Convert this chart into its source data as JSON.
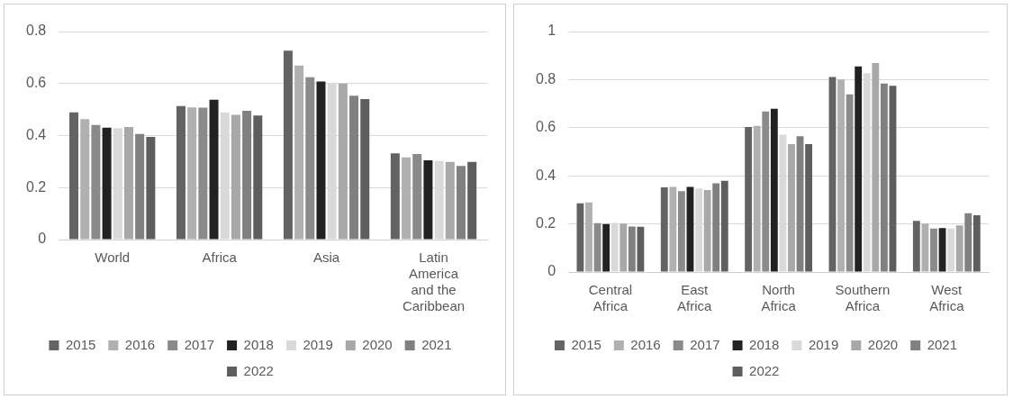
{
  "chart_data": [
    {
      "type": "bar",
      "categories": [
        "World",
        "Africa",
        "Asia",
        "Latin America and the Caribbean"
      ],
      "ylim": [
        0,
        0.8
      ],
      "yticks": [
        0,
        0.2,
        0.4,
        0.6,
        0.8
      ],
      "grid": "y",
      "legend": "bottom",
      "series": [
        {
          "name": "2015",
          "color": "#636363",
          "values": [
            0.489,
            0.513,
            0.726,
            0.332
          ]
        },
        {
          "name": "2016",
          "color": "#b0b0b0",
          "values": [
            0.463,
            0.508,
            0.669,
            0.316
          ]
        },
        {
          "name": "2017",
          "color": "#8a8a8a",
          "values": [
            0.441,
            0.507,
            0.624,
            0.329
          ]
        },
        {
          "name": "2018",
          "color": "#222222",
          "values": [
            0.43,
            0.538,
            0.608,
            0.305
          ]
        },
        {
          "name": "2019",
          "color": "#d9d9d9",
          "values": [
            0.429,
            0.489,
            0.603,
            0.302
          ]
        },
        {
          "name": "2020",
          "color": "#a8a8a8",
          "values": [
            0.433,
            0.48,
            0.6,
            0.299
          ]
        },
        {
          "name": "2021",
          "color": "#808080",
          "values": [
            0.406,
            0.495,
            0.553,
            0.283
          ]
        },
        {
          "name": "2022",
          "color": "#5e5e5e",
          "values": [
            0.395,
            0.477,
            0.54,
            0.299
          ]
        }
      ]
    },
    {
      "type": "bar",
      "categories": [
        "Central Africa",
        "East Africa",
        "North Africa",
        "Southern Africa",
        "West Africa"
      ],
      "ylim": [
        0,
        1
      ],
      "yticks": [
        0,
        0.2,
        0.4,
        0.6,
        0.8,
        1
      ],
      "grid": "y",
      "legend": "bottom",
      "series": [
        {
          "name": "2015",
          "color": "#636363",
          "values": [
            0.286,
            0.352,
            0.603,
            0.811,
            0.213
          ]
        },
        {
          "name": "2016",
          "color": "#b0b0b0",
          "values": [
            0.289,
            0.354,
            0.608,
            0.801,
            0.201
          ]
        },
        {
          "name": "2017",
          "color": "#8a8a8a",
          "values": [
            0.203,
            0.336,
            0.668,
            0.739,
            0.181
          ]
        },
        {
          "name": "2018",
          "color": "#222222",
          "values": [
            0.199,
            0.354,
            0.679,
            0.855,
            0.183
          ]
        },
        {
          "name": "2019",
          "color": "#d9d9d9",
          "values": [
            0.204,
            0.347,
            0.571,
            0.827,
            0.181
          ]
        },
        {
          "name": "2020",
          "color": "#a8a8a8",
          "values": [
            0.201,
            0.341,
            0.532,
            0.869,
            0.194
          ]
        },
        {
          "name": "2021",
          "color": "#808080",
          "values": [
            0.189,
            0.369,
            0.565,
            0.784,
            0.244
          ]
        },
        {
          "name": "2022",
          "color": "#5e5e5e",
          "values": [
            0.188,
            0.379,
            0.532,
            0.774,
            0.236
          ]
        }
      ]
    }
  ]
}
